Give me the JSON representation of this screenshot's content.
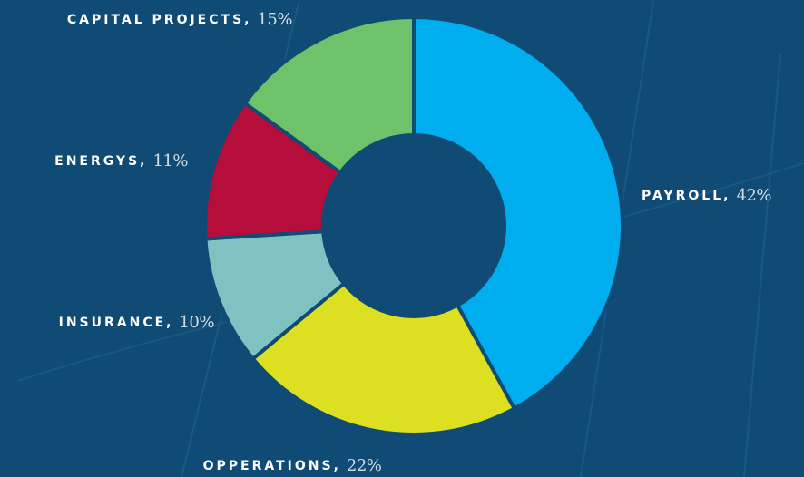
{
  "chart_data": {
    "type": "donut",
    "categories": [
      "PAYROLL",
      "OPPERATIONS",
      "INSURANCE",
      "ENERGYS",
      "CAPITAL PROJECTS"
    ],
    "values": [
      42,
      22,
      10,
      11,
      15
    ],
    "value_labels": [
      "42%",
      "22%",
      "10%",
      "11%",
      "15%"
    ],
    "separator": ",",
    "colors": [
      "#00aeef",
      "#dde021",
      "#80c2c2",
      "#b70d3a",
      "#6ec26a"
    ]
  }
}
